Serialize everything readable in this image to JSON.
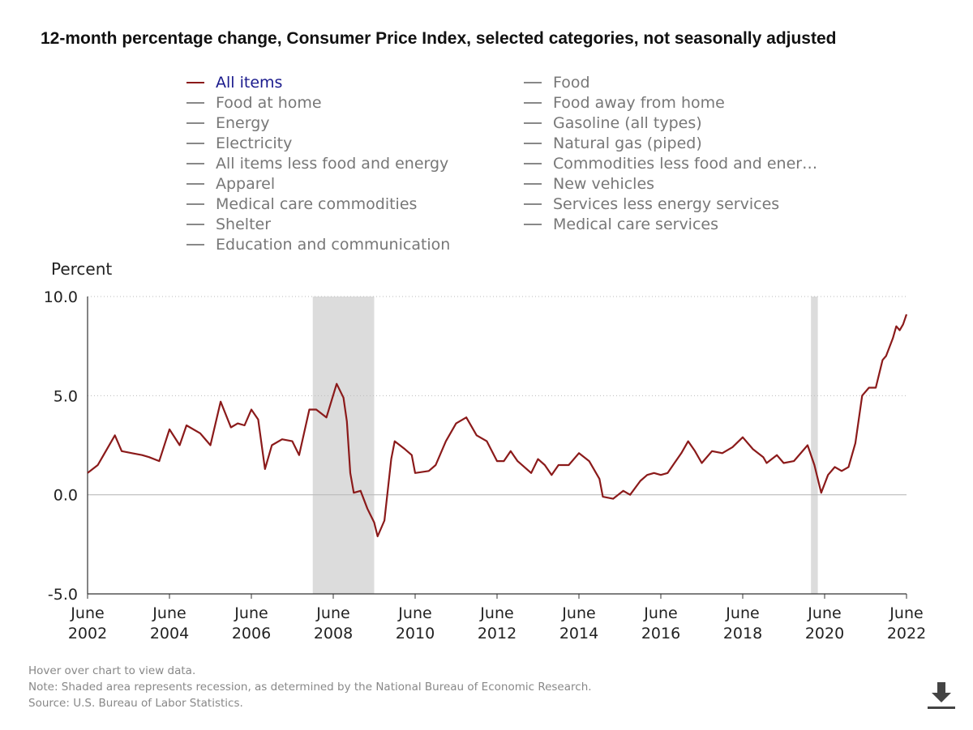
{
  "title": "12-month percentage change, Consumer Price Index, selected categories, not seasonally adjusted",
  "legend": [
    {
      "label": "All items",
      "active": true
    },
    {
      "label": "Food at home",
      "active": false
    },
    {
      "label": "Energy",
      "active": false
    },
    {
      "label": "Electricity",
      "active": false
    },
    {
      "label": "All items less food and energy",
      "active": false
    },
    {
      "label": "Apparel",
      "active": false
    },
    {
      "label": "Medical care commodities",
      "active": false
    },
    {
      "label": "Shelter",
      "active": false
    },
    {
      "label": "Education and communication",
      "active": false
    },
    {
      "label": "Food",
      "active": false
    },
    {
      "label": "Food away from home",
      "active": false
    },
    {
      "label": "Gasoline (all types)",
      "active": false
    },
    {
      "label": "Natural gas (piped)",
      "active": false
    },
    {
      "label": "Commodities less food and ener…",
      "active": false
    },
    {
      "label": "New vehicles",
      "active": false
    },
    {
      "label": "Services less energy services",
      "active": false
    },
    {
      "label": "Medical care services",
      "active": false
    }
  ],
  "notes": {
    "hover": "Hover over chart to view data.",
    "note": "Note: Shaded area represents recession, as determined by the National Bureau of Economic Research.",
    "source": "Source: U.S. Bureau of Labor Statistics."
  },
  "icons": {
    "download": "download-icon"
  },
  "colors": {
    "series": "#8b1a1a",
    "recession": "#dcdcdc",
    "legend_active": "#1a1a8c",
    "legend_inactive": "#777777"
  },
  "chart_data": {
    "type": "line",
    "ylabel": "Percent",
    "ylim": [
      -5,
      10
    ],
    "yticks": [
      "10.0",
      "5.0",
      "0.0",
      "-5.0"
    ],
    "ytick_values": [
      10,
      5,
      0,
      -5
    ],
    "xlim": [
      "2002-06",
      "2022-06"
    ],
    "xticks": [
      {
        "month": "June",
        "year": "2002",
        "date": "2002-06"
      },
      {
        "month": "June",
        "year": "2004",
        "date": "2004-06"
      },
      {
        "month": "June",
        "year": "2006",
        "date": "2006-06"
      },
      {
        "month": "June",
        "year": "2008",
        "date": "2008-06"
      },
      {
        "month": "June",
        "year": "2010",
        "date": "2010-06"
      },
      {
        "month": "June",
        "year": "2012",
        "date": "2012-06"
      },
      {
        "month": "June",
        "year": "2014",
        "date": "2014-06"
      },
      {
        "month": "June",
        "year": "2016",
        "date": "2016-06"
      },
      {
        "month": "June",
        "year": "2018",
        "date": "2018-06"
      },
      {
        "month": "June",
        "year": "2020",
        "date": "2020-06"
      },
      {
        "month": "June",
        "year": "2022",
        "date": "2022-06"
      }
    ],
    "recessions": [
      {
        "start": "2007-12",
        "end": "2009-06"
      },
      {
        "start": "2020-02",
        "end": "2020-04"
      }
    ],
    "grid": true,
    "series": [
      {
        "name": "All items",
        "points": [
          [
            "2002-06",
            1.1
          ],
          [
            "2002-09",
            1.5
          ],
          [
            "2002-12",
            2.4
          ],
          [
            "2003-02",
            3.0
          ],
          [
            "2003-04",
            2.2
          ],
          [
            "2003-07",
            2.1
          ],
          [
            "2003-10",
            2.0
          ],
          [
            "2003-12",
            1.9
          ],
          [
            "2004-03",
            1.7
          ],
          [
            "2004-06",
            3.3
          ],
          [
            "2004-09",
            2.5
          ],
          [
            "2004-11",
            3.5
          ],
          [
            "2005-03",
            3.1
          ],
          [
            "2005-06",
            2.5
          ],
          [
            "2005-09",
            4.7
          ],
          [
            "2005-12",
            3.4
          ],
          [
            "2006-02",
            3.6
          ],
          [
            "2006-04",
            3.5
          ],
          [
            "2006-06",
            4.3
          ],
          [
            "2006-08",
            3.8
          ],
          [
            "2006-10",
            1.3
          ],
          [
            "2006-12",
            2.5
          ],
          [
            "2007-03",
            2.8
          ],
          [
            "2007-06",
            2.7
          ],
          [
            "2007-08",
            2.0
          ],
          [
            "2007-11",
            4.3
          ],
          [
            "2008-01",
            4.3
          ],
          [
            "2008-04",
            3.9
          ],
          [
            "2008-07",
            5.6
          ],
          [
            "2008-09",
            4.9
          ],
          [
            "2008-10",
            3.7
          ],
          [
            "2008-11",
            1.1
          ],
          [
            "2008-12",
            0.1
          ],
          [
            "2009-02",
            0.2
          ],
          [
            "2009-04",
            -0.7
          ],
          [
            "2009-06",
            -1.4
          ],
          [
            "2009-07",
            -2.1
          ],
          [
            "2009-09",
            -1.3
          ],
          [
            "2009-11",
            1.8
          ],
          [
            "2009-12",
            2.7
          ],
          [
            "2010-03",
            2.3
          ],
          [
            "2010-05",
            2.0
          ],
          [
            "2010-06",
            1.1
          ],
          [
            "2010-10",
            1.2
          ],
          [
            "2010-12",
            1.5
          ],
          [
            "2011-03",
            2.7
          ],
          [
            "2011-06",
            3.6
          ],
          [
            "2011-09",
            3.9
          ],
          [
            "2011-12",
            3.0
          ],
          [
            "2012-03",
            2.7
          ],
          [
            "2012-06",
            1.7
          ],
          [
            "2012-08",
            1.7
          ],
          [
            "2012-10",
            2.2
          ],
          [
            "2012-12",
            1.7
          ],
          [
            "2013-04",
            1.1
          ],
          [
            "2013-06",
            1.8
          ],
          [
            "2013-08",
            1.5
          ],
          [
            "2013-10",
            1.0
          ],
          [
            "2013-12",
            1.5
          ],
          [
            "2014-03",
            1.5
          ],
          [
            "2014-06",
            2.1
          ],
          [
            "2014-09",
            1.7
          ],
          [
            "2014-12",
            0.8
          ],
          [
            "2015-01",
            -0.1
          ],
          [
            "2015-04",
            -0.2
          ],
          [
            "2015-07",
            0.2
          ],
          [
            "2015-09",
            0.0
          ],
          [
            "2015-12",
            0.7
          ],
          [
            "2016-02",
            1.0
          ],
          [
            "2016-04",
            1.1
          ],
          [
            "2016-06",
            1.0
          ],
          [
            "2016-08",
            1.1
          ],
          [
            "2016-10",
            1.6
          ],
          [
            "2016-12",
            2.1
          ],
          [
            "2017-02",
            2.7
          ],
          [
            "2017-04",
            2.2
          ],
          [
            "2017-06",
            1.6
          ],
          [
            "2017-09",
            2.2
          ],
          [
            "2017-12",
            2.1
          ],
          [
            "2018-03",
            2.4
          ],
          [
            "2018-06",
            2.9
          ],
          [
            "2018-09",
            2.3
          ],
          [
            "2018-12",
            1.9
          ],
          [
            "2019-01",
            1.6
          ],
          [
            "2019-04",
            2.0
          ],
          [
            "2019-06",
            1.6
          ],
          [
            "2019-09",
            1.7
          ],
          [
            "2019-12",
            2.3
          ],
          [
            "2020-01",
            2.5
          ],
          [
            "2020-03",
            1.5
          ],
          [
            "2020-05",
            0.1
          ],
          [
            "2020-07",
            1.0
          ],
          [
            "2020-09",
            1.4
          ],
          [
            "2020-11",
            1.2
          ],
          [
            "2021-01",
            1.4
          ],
          [
            "2021-03",
            2.6
          ],
          [
            "2021-05",
            5.0
          ],
          [
            "2021-07",
            5.4
          ],
          [
            "2021-09",
            5.4
          ],
          [
            "2021-11",
            6.8
          ],
          [
            "2021-12",
            7.0
          ],
          [
            "2022-02",
            7.9
          ],
          [
            "2022-03",
            8.5
          ],
          [
            "2022-04",
            8.3
          ],
          [
            "2022-05",
            8.6
          ],
          [
            "2022-06",
            9.1
          ]
        ]
      }
    ]
  }
}
